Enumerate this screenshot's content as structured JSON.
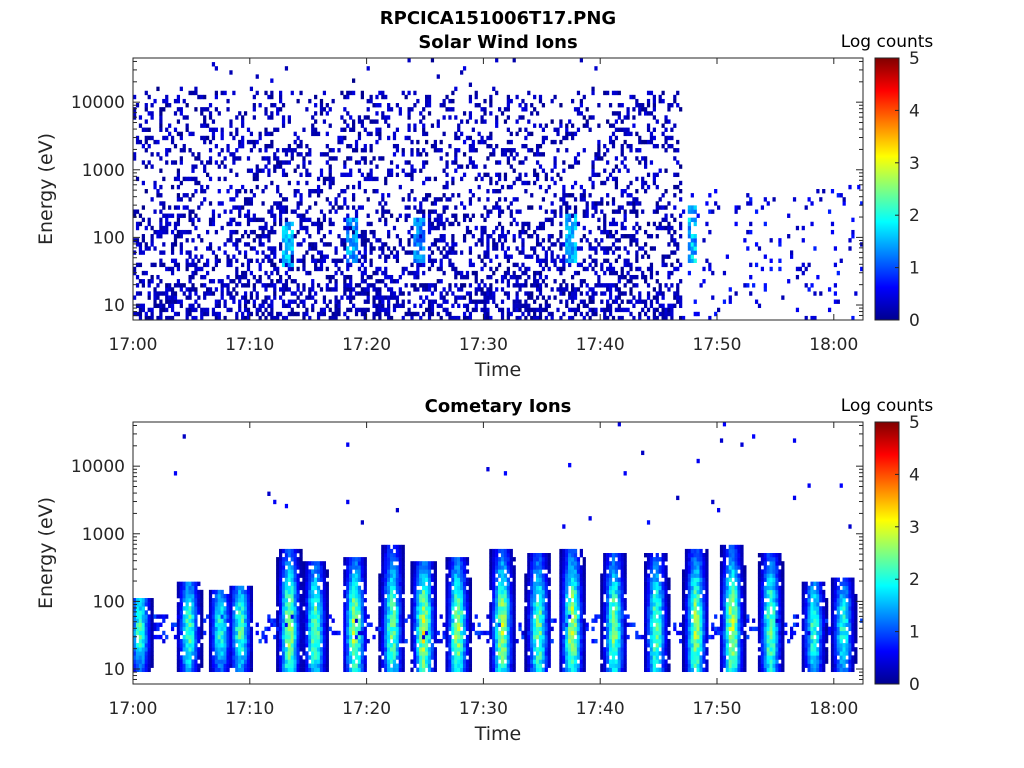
{
  "figure_title": "RPCICA151006T17.PNG",
  "colorbar": {
    "label": "Log counts",
    "ticks": [
      "0",
      "1",
      "2",
      "3",
      "4",
      "5"
    ],
    "range": [
      0,
      5
    ],
    "colormap": "jet"
  },
  "chart_data": [
    {
      "type": "heatmap",
      "title": "Solar Wind Ions",
      "xlabel": "Time",
      "ylabel": "Energy (eV)",
      "x_ticks": [
        "17:00",
        "17:10",
        "17:20",
        "17:30",
        "17:40",
        "17:50",
        "18:00"
      ],
      "x_tick_minutes": [
        0,
        10,
        20,
        30,
        40,
        50,
        60
      ],
      "xlim_minutes": [
        0,
        62.5
      ],
      "y_ticks": [
        "10",
        "100",
        "1000",
        "10000"
      ],
      "y_tick_values": [
        10,
        100,
        1000,
        10000
      ],
      "y_scale": "log",
      "ylim": [
        6,
        45000
      ],
      "z_range": [
        0,
        5
      ],
      "description_of_data": "Sparse low-level counts (0-1) across 6 eV-20 keV until about 17:47, with brief enhancements near 100 eV; after 17:47 only scattered counts below 500 eV.",
      "activity_end_minutes": 47,
      "enhancements": [
        {
          "minute": 13.2,
          "energy_eV": 70,
          "log_counts": 2.0
        },
        {
          "minute": 18.8,
          "energy_eV": 80,
          "log_counts": 1.7
        },
        {
          "minute": 24.5,
          "energy_eV": 80,
          "log_counts": 1.6
        },
        {
          "minute": 37.5,
          "energy_eV": 90,
          "log_counts": 1.9
        },
        {
          "minute": 47.8,
          "energy_eV": 110,
          "log_counts": 2.0
        }
      ]
    },
    {
      "type": "heatmap",
      "title": "Cometary Ions",
      "xlabel": "Time",
      "ylabel": "Energy (eV)",
      "x_ticks": [
        "17:00",
        "17:10",
        "17:20",
        "17:30",
        "17:40",
        "17:50",
        "18:00"
      ],
      "x_tick_minutes": [
        0,
        10,
        20,
        30,
        40,
        50,
        60
      ],
      "xlim_minutes": [
        0,
        62.5
      ],
      "y_ticks": [
        "10",
        "100",
        "1000",
        "10000"
      ],
      "y_tick_values": [
        10,
        100,
        1000,
        10000
      ],
      "y_scale": "log",
      "ylim": [
        6,
        45000
      ],
      "z_range": [
        0,
        5
      ],
      "description_of_data": "Repeated bursts of cometary ions centred near 40-60 eV, extending up to ~600 eV and down to ~10 eV, with peak log counts of about 2.5-3.",
      "baseline_energy_eV": 40,
      "bursts": [
        {
          "minute": 0.6,
          "peak_log_counts": 2.3,
          "top_energy_eV": 120
        },
        {
          "minute": 4.8,
          "peak_log_counts": 2.4,
          "top_energy_eV": 200
        },
        {
          "minute": 7.5,
          "peak_log_counts": 2.2,
          "top_energy_eV": 150
        },
        {
          "minute": 9.2,
          "peak_log_counts": 2.4,
          "top_energy_eV": 180
        },
        {
          "minute": 13.4,
          "peak_log_counts": 2.8,
          "top_energy_eV": 600
        },
        {
          "minute": 15.6,
          "peak_log_counts": 2.6,
          "top_energy_eV": 400
        },
        {
          "minute": 19.0,
          "peak_log_counts": 2.9,
          "top_energy_eV": 450
        },
        {
          "minute": 22.2,
          "peak_log_counts": 2.5,
          "top_energy_eV": 700
        },
        {
          "minute": 24.9,
          "peak_log_counts": 3.1,
          "top_energy_eV": 400
        },
        {
          "minute": 27.8,
          "peak_log_counts": 2.8,
          "top_energy_eV": 450
        },
        {
          "minute": 31.6,
          "peak_log_counts": 2.9,
          "top_energy_eV": 600
        },
        {
          "minute": 34.7,
          "peak_log_counts": 2.6,
          "top_energy_eV": 500
        },
        {
          "minute": 37.6,
          "peak_log_counts": 3.0,
          "top_energy_eV": 600
        },
        {
          "minute": 41.2,
          "peak_log_counts": 2.6,
          "top_energy_eV": 550
        },
        {
          "minute": 44.8,
          "peak_log_counts": 2.5,
          "top_energy_eV": 500
        },
        {
          "minute": 48.2,
          "peak_log_counts": 2.8,
          "top_energy_eV": 600
        },
        {
          "minute": 51.3,
          "peak_log_counts": 2.9,
          "top_energy_eV": 700
        },
        {
          "minute": 54.6,
          "peak_log_counts": 2.6,
          "top_energy_eV": 550
        },
        {
          "minute": 58.3,
          "peak_log_counts": 2.3,
          "top_energy_eV": 200
        },
        {
          "minute": 60.8,
          "peak_log_counts": 2.2,
          "top_energy_eV": 220
        }
      ]
    }
  ]
}
